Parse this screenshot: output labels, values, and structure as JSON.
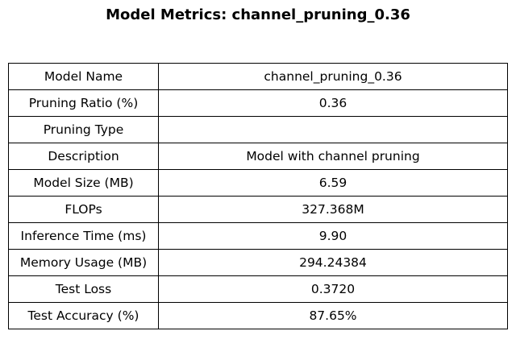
{
  "chart_data": {
    "type": "table",
    "title": "Model Metrics: channel_pruning_0.36",
    "rows": [
      {
        "label": "Model Name",
        "value": "channel_pruning_0.36"
      },
      {
        "label": "Pruning Ratio (%)",
        "value": "0.36"
      },
      {
        "label": "Pruning Type",
        "value": ""
      },
      {
        "label": "Description",
        "value": "Model with channel pruning"
      },
      {
        "label": "Model Size (MB)",
        "value": "6.59"
      },
      {
        "label": "FLOPs",
        "value": "327.368M"
      },
      {
        "label": "Inference Time (ms)",
        "value": "9.90"
      },
      {
        "label": "Memory Usage (MB)",
        "value": "294.24384"
      },
      {
        "label": "Test Loss",
        "value": "0.3720"
      },
      {
        "label": "Test Accuracy (%)",
        "value": "87.65%"
      }
    ]
  }
}
